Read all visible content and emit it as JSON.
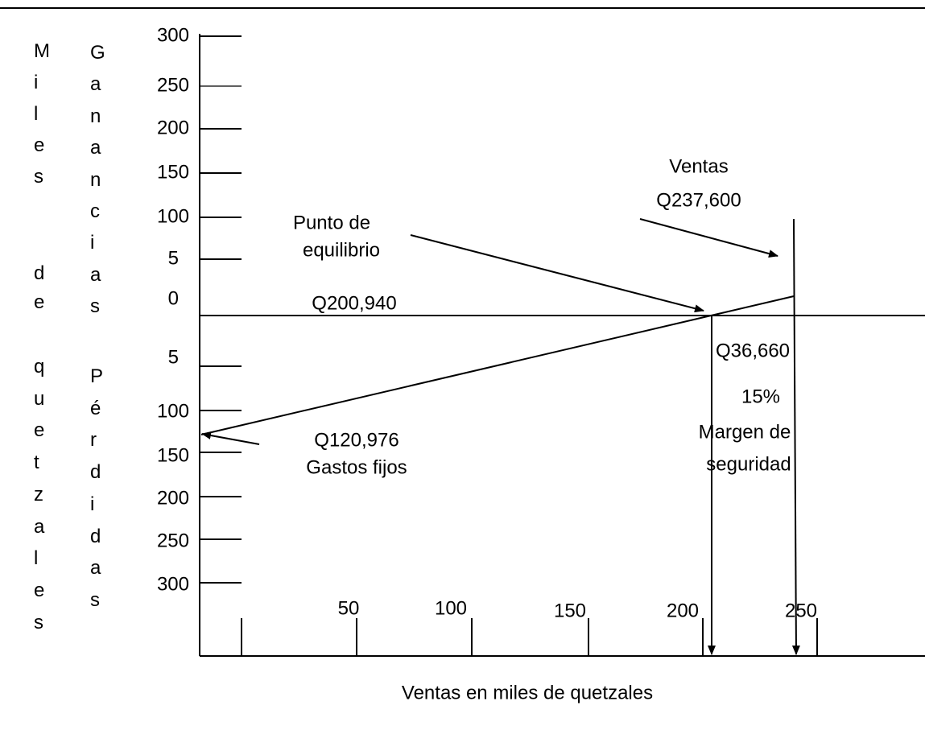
{
  "y_axis_labels": {
    "left": [
      "Miles",
      "de",
      "quetzales"
    ],
    "right": [
      "Ganancias",
      "Pérdidas"
    ]
  },
  "y_ticks": [
    "300",
    "250",
    "200",
    "150",
    "100",
    "5",
    "0",
    "5",
    "100",
    "150",
    "200",
    "250",
    "300"
  ],
  "x_ticks": [
    "50",
    "100",
    "150",
    "200",
    "250"
  ],
  "annotations": {
    "break_even": [
      "Punto de",
      "equilibrio"
    ],
    "break_even_value": "Q200,940",
    "sales": [
      "Ventas",
      "Q237,600"
    ],
    "safety_margin": [
      "Q36,660",
      "15%",
      "Margen de",
      "seguridad"
    ],
    "fixed_costs": [
      "Q120,976",
      "Gastos fijos"
    ]
  },
  "x_axis_title": "Ventas en miles de quetzales"
}
